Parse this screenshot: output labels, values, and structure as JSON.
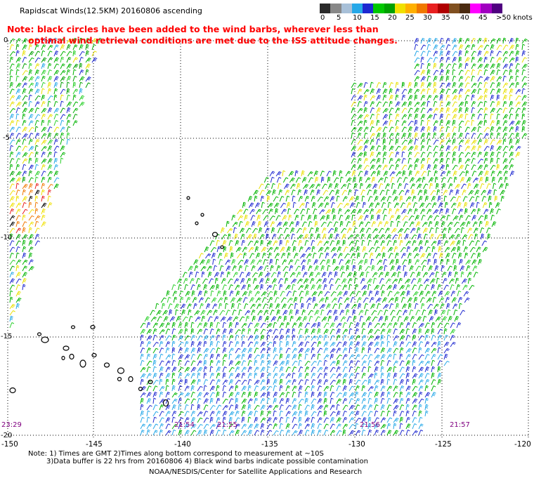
{
  "title": "Rapidscat Winds(12.5KM) 20160806 ascending",
  "note": {
    "line1": "Note: black circles have been added to the wind barbs, wherever less than",
    "line2": "optimal wind retrieval conditions are met due to the ISS attitude changes."
  },
  "colorbar": {
    "labels": [
      "0",
      "5",
      "10",
      "15",
      "20",
      "25",
      "30",
      "35",
      "40",
      "45",
      ">50 knots"
    ],
    "colors": [
      "#2a2a2a",
      "#888888",
      "#a8c0d8",
      "#26a8e8",
      "#1e28d0",
      "#00c800",
      "#00a000",
      "#f0e000",
      "#ffb000",
      "#f07800",
      "#e82020",
      "#b00000",
      "#805020",
      "#4a2a10",
      "#ff00ff",
      "#a000c0",
      "#500080"
    ]
  },
  "lat_labels": [
    "0",
    "-5",
    "-10",
    "-15",
    "-20"
  ],
  "lon_labels": [
    "-150",
    "-145",
    "-140",
    "-135",
    "-130",
    "-125",
    "-120"
  ],
  "times": [
    "23:29",
    "21:54",
    "21:55",
    "21:56",
    "21:57"
  ],
  "footer": {
    "line1": "Note: 1) Times are GMT 2)Times along bottom correspond to measurement at ~10S",
    "line2": "3)Data buffer is 22 hrs from 20160806 4) Black wind barbs indicate possible contamination",
    "line3": "NOAA/NESDIS/Center for Satellite Applications and Research"
  }
}
